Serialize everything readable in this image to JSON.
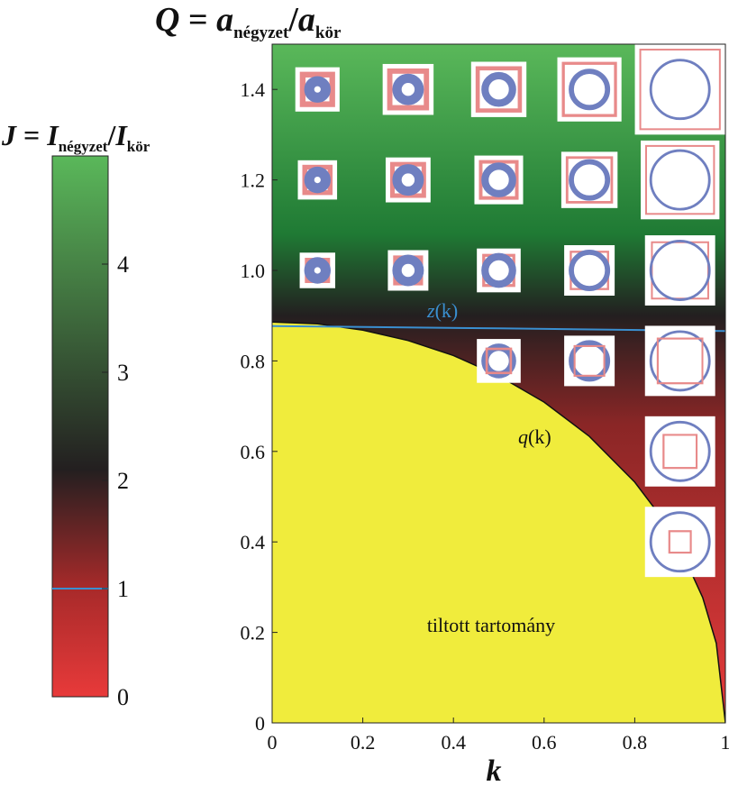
{
  "chart_data": [
    {
      "type": "heatmap",
      "title_parts": {
        "lhs": "Q",
        "eq": " = ",
        "a1": "a",
        "sub1": "négyzet",
        "slash": "/",
        "a2": "a",
        "sub2": "kör"
      },
      "xlabel": "k",
      "xlim": [
        0,
        1
      ],
      "ylim": [
        0,
        1.5
      ],
      "x_ticks": [
        "0",
        "0.2",
        "0.4",
        "0.6",
        "0.8",
        "1"
      ],
      "x_tick_values": [
        0,
        0.2,
        0.4,
        0.6,
        0.8,
        1.0
      ],
      "y_ticks": [
        "0",
        "0.2",
        "0.4",
        "0.6",
        "0.8",
        "1.0",
        "1.2",
        "1.4"
      ],
      "y_tick_values": [
        0,
        0.2,
        0.4,
        0.6,
        0.8,
        1.0,
        1.2,
        1.4
      ],
      "regions": {
        "forbidden_label": "tiltott tartomány",
        "forbidden_color": "#f0ec3c"
      },
      "curves": [
        {
          "name": "z(k)",
          "label_main": "z",
          "label_arg": "(k)",
          "color": "#3a8fd0",
          "points": [
            [
              0,
              0.877
            ],
            [
              0.5,
              0.872
            ],
            [
              1.0,
              0.866
            ]
          ]
        },
        {
          "name": "q(k)",
          "label_main": "q",
          "label_arg": "(k)",
          "color": "#111111",
          "points": [
            [
              0,
              0.886
            ],
            [
              0.1,
              0.882
            ],
            [
              0.2,
              0.868
            ],
            [
              0.3,
              0.845
            ],
            [
              0.4,
              0.812
            ],
            [
              0.5,
              0.767
            ],
            [
              0.6,
              0.709
            ],
            [
              0.7,
              0.633
            ],
            [
              0.8,
              0.532
            ],
            [
              0.85,
              0.466
            ],
            [
              0.9,
              0.386
            ],
            [
              0.95,
              0.277
            ],
            [
              0.98,
              0.176
            ],
            [
              1.0,
              0.0
            ]
          ]
        }
      ],
      "insets": [
        {
          "k": 0.1,
          "Q": 1.4
        },
        {
          "k": 0.3,
          "Q": 1.4
        },
        {
          "k": 0.5,
          "Q": 1.4
        },
        {
          "k": 0.7,
          "Q": 1.4
        },
        {
          "k": 0.9,
          "Q": 1.4
        },
        {
          "k": 0.1,
          "Q": 1.2
        },
        {
          "k": 0.3,
          "Q": 1.2
        },
        {
          "k": 0.5,
          "Q": 1.2
        },
        {
          "k": 0.7,
          "Q": 1.2
        },
        {
          "k": 0.9,
          "Q": 1.2
        },
        {
          "k": 0.1,
          "Q": 1.0
        },
        {
          "k": 0.3,
          "Q": 1.0
        },
        {
          "k": 0.5,
          "Q": 1.0
        },
        {
          "k": 0.7,
          "Q": 1.0
        },
        {
          "k": 0.9,
          "Q": 1.0
        },
        {
          "k": 0.5,
          "Q": 0.8
        },
        {
          "k": 0.7,
          "Q": 0.8
        },
        {
          "k": 0.9,
          "Q": 0.8
        },
        {
          "k": 0.9,
          "Q": 0.6
        },
        {
          "k": 0.9,
          "Q": 0.4
        }
      ]
    },
    {
      "type": "colorbar",
      "title_parts": {
        "lhs": "J",
        "eq": " = ",
        "i1": "I",
        "sub1": "négyzet",
        "slash": "/",
        "i2": "I",
        "sub2": "kör"
      },
      "range": [
        0,
        5
      ],
      "ticks": [
        "0",
        "1",
        "2",
        "3",
        "4"
      ],
      "tick_values": [
        0,
        1,
        2,
        3,
        4
      ],
      "reference_value": 1,
      "reference_color": "#3a8fd0",
      "colors": {
        "low": "#e83a3a",
        "mid": "#231f20",
        "high": "#5ab85a"
      }
    }
  ],
  "colors": {
    "square": "#e88a8a",
    "circle": "#6f7fc0",
    "inset_bg": "#ffffff"
  }
}
